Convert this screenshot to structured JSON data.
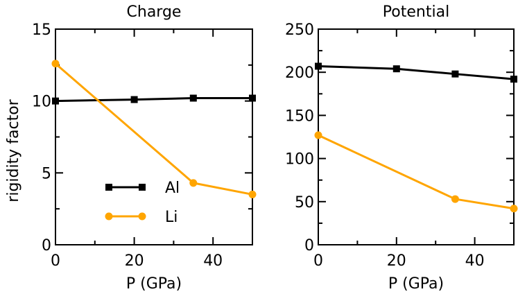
{
  "chart_data": [
    {
      "type": "line",
      "title": "Charge",
      "xlabel": "P (GPa)",
      "ylabel": "rigidity factor",
      "xlim": [
        0,
        50
      ],
      "ylim": [
        0,
        15
      ],
      "xticks": [
        0,
        20,
        40
      ],
      "xtick_labels": [
        "0",
        "20",
        "40"
      ],
      "yticks": [
        0,
        5,
        10,
        15
      ],
      "ytick_labels": [
        "0",
        "5",
        "10",
        "15"
      ],
      "legend": "lower-left",
      "series": [
        {
          "name": "Al",
          "color": "#000000",
          "marker": "square",
          "x": [
            0,
            20,
            35,
            50
          ],
          "y": [
            10.0,
            10.1,
            10.2,
            10.2
          ]
        },
        {
          "name": "Li",
          "color": "#ffa500",
          "marker": "circle",
          "x": [
            0,
            35,
            50
          ],
          "y": [
            12.6,
            4.3,
            3.5
          ]
        }
      ]
    },
    {
      "type": "line",
      "title": "Potential",
      "xlabel": "P (GPa)",
      "ylabel": "",
      "xlim": [
        0,
        50
      ],
      "ylim": [
        0,
        250
      ],
      "xticks": [
        0,
        20,
        40
      ],
      "xtick_labels": [
        "0",
        "20",
        "40"
      ],
      "yticks": [
        0,
        50,
        100,
        150,
        200,
        250
      ],
      "ytick_labels": [
        "0",
        "50",
        "100",
        "150",
        "200",
        "250"
      ],
      "series": [
        {
          "name": "Al",
          "color": "#000000",
          "marker": "square",
          "x": [
            0,
            20,
            35,
            50
          ],
          "y": [
            207,
            204,
            198,
            192
          ]
        },
        {
          "name": "Li",
          "color": "#ffa500",
          "marker": "circle",
          "x": [
            0,
            35,
            50
          ],
          "y": [
            127,
            53,
            42
          ]
        }
      ]
    }
  ]
}
